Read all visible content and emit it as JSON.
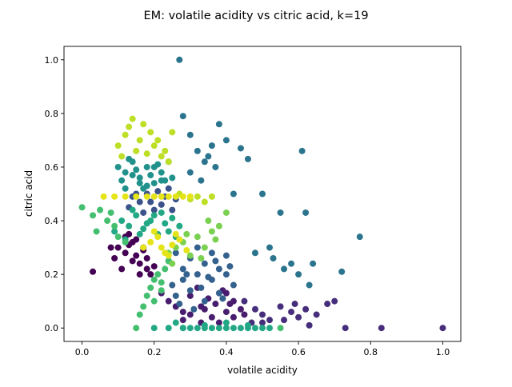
{
  "chart_data": {
    "type": "scatter",
    "title": "EM: volatile acidity vs citric acid, k=19",
    "xlabel": "volatile acidity",
    "ylabel": "citric acid",
    "xlim": [
      -0.05,
      1.05
    ],
    "ylim": [
      -0.05,
      1.05
    ],
    "xticks": [
      0.0,
      0.2,
      0.4,
      0.6,
      0.8,
      1.0
    ],
    "yticks": [
      0.0,
      0.2,
      0.4,
      0.6,
      0.8,
      1.0
    ],
    "xtick_labels": [
      "0.0",
      "0.2",
      "0.4",
      "0.6",
      "0.8",
      "1.0"
    ],
    "ytick_labels": [
      "0.0",
      "0.2",
      "0.4",
      "0.6",
      "0.8",
      "1.0"
    ],
    "grid": false,
    "legend": "none",
    "colormap": "viridis",
    "series": [
      {
        "color": "#440154",
        "x": [
          0.03,
          0.08,
          0.09,
          0.1,
          0.12,
          0.13,
          0.14,
          0.15,
          0.16,
          0.17,
          0.18,
          0.19,
          0.2,
          0.11,
          0.13,
          0.15,
          0.16,
          0.18,
          0.12,
          0.14,
          0.17
        ],
        "y": [
          0.21,
          0.3,
          0.26,
          0.3,
          0.28,
          0.35,
          0.32,
          0.27,
          0.24,
          0.29,
          0.22,
          0.2,
          0.23,
          0.22,
          0.31,
          0.33,
          0.2,
          0.26,
          0.34,
          0.25,
          0.3
        ]
      },
      {
        "color": "#481d6f",
        "x": [
          0.22,
          0.24,
          0.26,
          0.28,
          0.3,
          0.33,
          0.35,
          0.37,
          0.4,
          0.42,
          0.44,
          0.3,
          0.32,
          0.36,
          0.4,
          0.45,
          0.38,
          0.28,
          0.34,
          0.42,
          0.33,
          0.39,
          0.41
        ],
        "y": [
          0.13,
          0.1,
          0.08,
          0.06,
          0.05,
          0.08,
          0.11,
          0.09,
          0.06,
          0.04,
          0.07,
          0.12,
          0.15,
          0.04,
          0.13,
          0.05,
          0.02,
          0.03,
          0.07,
          0.1,
          0.02,
          0.14,
          0.09
        ]
      },
      {
        "color": "#472e7c",
        "x": [
          0.45,
          0.48,
          0.5,
          0.52,
          0.55,
          0.58,
          0.6,
          0.62,
          0.65,
          0.68,
          0.7,
          0.73,
          0.83,
          1.0,
          0.5,
          0.56,
          0.63,
          0.59,
          0.47
        ],
        "y": [
          0.1,
          0.07,
          0.05,
          0.03,
          0.08,
          0.06,
          0.04,
          0.07,
          0.05,
          0.09,
          0.1,
          0.0,
          0.0,
          0.0,
          0.02,
          0.03,
          0.01,
          0.09,
          0.02
        ]
      },
      {
        "color": "#3b528b",
        "x": [
          0.13,
          0.16,
          0.18,
          0.2,
          0.22,
          0.24,
          0.26,
          0.14,
          0.17,
          0.21,
          0.25,
          0.19,
          0.23,
          0.15
        ],
        "y": [
          0.45,
          0.47,
          0.5,
          0.44,
          0.46,
          0.52,
          0.48,
          0.49,
          0.43,
          0.51,
          0.44,
          0.47,
          0.49,
          0.5
        ]
      },
      {
        "color": "#34618d",
        "x": [
          0.24,
          0.26,
          0.28,
          0.3,
          0.32,
          0.34,
          0.36,
          0.38,
          0.4,
          0.42,
          0.26,
          0.3,
          0.34,
          0.38,
          0.28,
          0.32,
          0.36,
          0.4,
          0.25,
          0.29,
          0.33,
          0.37,
          0.41,
          0.27,
          0.31,
          0.35,
          0.39
        ],
        "y": [
          0.25,
          0.28,
          0.22,
          0.26,
          0.2,
          0.24,
          0.18,
          0.22,
          0.27,
          0.16,
          0.12,
          0.14,
          0.1,
          0.13,
          0.18,
          0.3,
          0.28,
          0.2,
          0.16,
          0.2,
          0.15,
          0.25,
          0.23,
          0.09,
          0.07,
          0.19,
          0.11
        ]
      },
      {
        "color": "#2b748e",
        "x": [
          0.27,
          0.28,
          0.3,
          0.32,
          0.34,
          0.36,
          0.38,
          0.4,
          0.44,
          0.46,
          0.5,
          0.55,
          0.61,
          0.62,
          0.48,
          0.52,
          0.53,
          0.56,
          0.58,
          0.6,
          0.63,
          0.64,
          0.72,
          0.77,
          0.3,
          0.33,
          0.37,
          0.35,
          0.42
        ],
        "y": [
          1.0,
          0.79,
          0.72,
          0.66,
          0.62,
          0.68,
          0.76,
          0.7,
          0.67,
          0.63,
          0.5,
          0.43,
          0.66,
          0.43,
          0.28,
          0.3,
          0.26,
          0.22,
          0.24,
          0.2,
          0.16,
          0.24,
          0.21,
          0.34,
          0.58,
          0.55,
          0.6,
          0.64,
          0.5
        ]
      },
      {
        "color": "#21918c",
        "x": [
          0.1,
          0.12,
          0.14,
          0.16,
          0.18,
          0.2,
          0.22,
          0.11,
          0.13,
          0.15,
          0.17,
          0.19,
          0.21,
          0.23,
          0.25,
          0.12,
          0.16,
          0.2,
          0.24,
          0.14,
          0.18,
          0.22
        ],
        "y": [
          0.6,
          0.58,
          0.62,
          0.56,
          0.6,
          0.54,
          0.58,
          0.55,
          0.63,
          0.59,
          0.52,
          0.57,
          0.61,
          0.55,
          0.56,
          0.52,
          0.54,
          0.6,
          0.62,
          0.57,
          0.53,
          0.55
        ]
      },
      {
        "color": "#22a884",
        "x": [
          0.09,
          0.11,
          0.13,
          0.15,
          0.17,
          0.19,
          0.21,
          0.23,
          0.25,
          0.27,
          0.12,
          0.16,
          0.2,
          0.24,
          0.14,
          0.18,
          0.22,
          0.26,
          0.28,
          0.2,
          0.24,
          0.28,
          0.3,
          0.32,
          0.34,
          0.36,
          0.38,
          0.4,
          0.42,
          0.44,
          0.46,
          0.48,
          0.5,
          0.52,
          0.26,
          0.34,
          0.4,
          0.46
        ],
        "y": [
          0.36,
          0.4,
          0.38,
          0.42,
          0.37,
          0.4,
          0.35,
          0.39,
          0.41,
          0.38,
          0.33,
          0.35,
          0.42,
          0.36,
          0.44,
          0.39,
          0.43,
          0.34,
          0.0,
          0.0,
          0.0,
          0.0,
          0.0,
          0.0,
          0.0,
          0.0,
          0.0,
          0.0,
          0.0,
          0.0,
          0.0,
          0.0,
          0.0,
          0.0,
          0.02,
          0.01,
          0.02,
          0.01
        ]
      },
      {
        "color": "#44bf70",
        "x": [
          0.0,
          0.03,
          0.05,
          0.07,
          0.09,
          0.1,
          0.12,
          0.04,
          0.08,
          0.15,
          0.16,
          0.17,
          0.18,
          0.19,
          0.2,
          0.21,
          0.22,
          0.23,
          0.24,
          0.2,
          0.22,
          0.55
        ],
        "y": [
          0.45,
          0.42,
          0.44,
          0.4,
          0.38,
          0.34,
          0.32,
          0.36,
          0.43,
          0.0,
          0.05,
          0.08,
          0.12,
          0.15,
          0.18,
          0.2,
          0.14,
          0.22,
          0.25,
          0.1,
          0.17,
          0.0
        ]
      },
      {
        "color": "#7ad151",
        "x": [
          0.24,
          0.26,
          0.28,
          0.3,
          0.32,
          0.34,
          0.36,
          0.38,
          0.25,
          0.29,
          0.33,
          0.37,
          0.35,
          0.4
        ],
        "y": [
          0.28,
          0.3,
          0.32,
          0.27,
          0.34,
          0.3,
          0.36,
          0.38,
          0.24,
          0.35,
          0.26,
          0.33,
          0.4,
          0.43
        ]
      },
      {
        "color": "#bddf26",
        "x": [
          0.1,
          0.12,
          0.13,
          0.14,
          0.16,
          0.18,
          0.2,
          0.22,
          0.24,
          0.11,
          0.15,
          0.17,
          0.19,
          0.21,
          0.23,
          0.25,
          0.27,
          0.3,
          0.32,
          0.34,
          0.36
        ],
        "y": [
          0.68,
          0.72,
          0.75,
          0.78,
          0.7,
          0.65,
          0.68,
          0.64,
          0.62,
          0.64,
          0.66,
          0.76,
          0.73,
          0.7,
          0.66,
          0.73,
          0.5,
          0.48,
          0.49,
          0.47,
          0.49
        ]
      },
      {
        "color": "#e5e419",
        "x": [
          0.06,
          0.09,
          0.12,
          0.15,
          0.18,
          0.2,
          0.22,
          0.24,
          0.26,
          0.28,
          0.3,
          0.17,
          0.19,
          0.21,
          0.23,
          0.25,
          0.27,
          0.29,
          0.2,
          0.24,
          0.22,
          0.26
        ],
        "y": [
          0.49,
          0.49,
          0.49,
          0.49,
          0.49,
          0.49,
          0.49,
          0.49,
          0.49,
          0.49,
          0.49,
          0.3,
          0.32,
          0.34,
          0.28,
          0.31,
          0.33,
          0.29,
          0.36,
          0.27,
          0.3,
          0.35
        ]
      }
    ]
  }
}
